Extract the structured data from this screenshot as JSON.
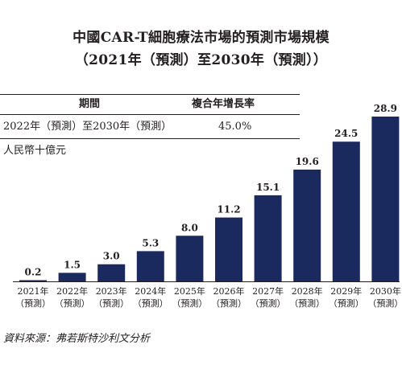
{
  "title": {
    "line1": "中國CAR-T細胞療法市場的預測市場規模",
    "line2": "（2021年（預測）至2030年（預測））"
  },
  "table": {
    "headers": [
      "期間",
      "複合年增長率"
    ],
    "rows": [
      [
        "2022年（預測）至2030年（預測）",
        "45.0%"
      ]
    ]
  },
  "unit_label": "人民幣十億元",
  "source": "資料來源：弗若斯特沙利文分析",
  "colors": {
    "bar": "#1b2a5e",
    "text": "#231f20"
  },
  "chart_data": {
    "type": "bar",
    "title": "中國CAR-T細胞療法市場的預測市場規模",
    "ylabel": "人民幣十億元",
    "categories": [
      "2021年",
      "2022年",
      "2023年",
      "2024年",
      "2025年",
      "2026年",
      "2027年",
      "2028年",
      "2029年",
      "2030年"
    ],
    "category_sub": [
      "（預測）",
      "（預測）",
      "（預測）",
      "（預測）",
      "（預測）",
      "（預測）",
      "（預測）",
      "（預測）",
      "（預測）",
      "（預測）"
    ],
    "values": [
      0.2,
      1.5,
      3.0,
      5.3,
      8.0,
      11.2,
      15.1,
      19.6,
      24.5,
      28.9
    ],
    "value_labels": [
      "0.2",
      "1.5",
      "3.0",
      "5.3",
      "8.0",
      "11.2",
      "15.1",
      "19.6",
      "24.5",
      "28.9"
    ],
    "ylim": [
      0,
      28.9
    ],
    "grid": false,
    "legend": "none"
  }
}
